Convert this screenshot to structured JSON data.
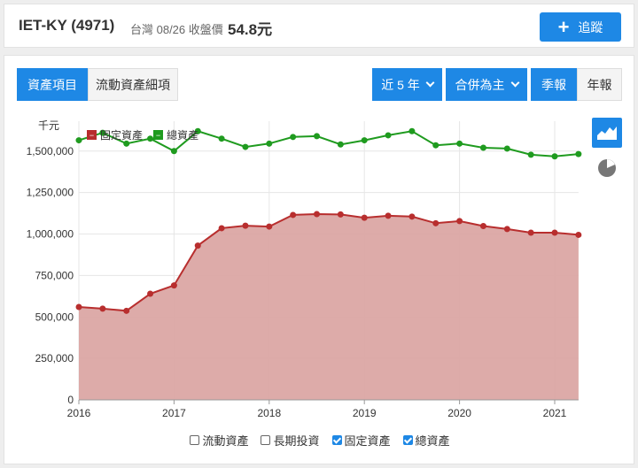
{
  "header": {
    "title": "IET-KY (4971)",
    "market": "台灣 08/26 收盤價",
    "price": "54.8元",
    "follow_label": "追蹤"
  },
  "tabs": [
    {
      "label": "資產項目",
      "active": true
    },
    {
      "label": "流動資產細項",
      "active": false
    }
  ],
  "controls": {
    "period": "近 5 年",
    "basis": "合併為主",
    "quarterly": "季報",
    "annual": "年報"
  },
  "side_icons": [
    "area-chart-icon",
    "pie-chart-icon"
  ],
  "bottom_legend": [
    {
      "label": "流動資產",
      "checked": false
    },
    {
      "label": "長期投資",
      "checked": false
    },
    {
      "label": "固定資產",
      "checked": true
    },
    {
      "label": "總資產",
      "checked": true
    }
  ],
  "colors": {
    "accent": "#1e88e5",
    "fixed_assets": "#b82e2e",
    "fixed_assets_fill": "#dba7a4",
    "total_assets": "#1f9b1f"
  },
  "chart_data": {
    "type": "line",
    "unit_label": "千元",
    "x_ticks": [
      "2016",
      "2017",
      "2018",
      "2019",
      "2020",
      "2021"
    ],
    "y_ticks": [
      "0",
      "250,000",
      "500,000",
      "750,000",
      "1,000,000",
      "1,250,000",
      "1,500,000"
    ],
    "ylim": [
      0,
      1600000
    ],
    "x": [
      "2016Q1",
      "2016Q2",
      "2016Q3",
      "2016Q4",
      "2017Q1",
      "2017Q2",
      "2017Q3",
      "2017Q4",
      "2018Q1",
      "2018Q2",
      "2018Q3",
      "2018Q4",
      "2019Q1",
      "2019Q2",
      "2019Q3",
      "2019Q4",
      "2020Q1",
      "2020Q2",
      "2020Q3",
      "2020Q4",
      "2021Q1",
      "2021Q2"
    ],
    "legend": [
      "固定資產",
      "總資產"
    ],
    "series": [
      {
        "name": "固定資產",
        "style": "area",
        "values": [
          560000,
          550000,
          537000,
          640000,
          690000,
          930000,
          1035000,
          1050000,
          1045000,
          1115000,
          1120000,
          1118000,
          1098000,
          1110000,
          1105000,
          1065000,
          1078000,
          1048000,
          1030000,
          1008000,
          1008000,
          995000
        ]
      },
      {
        "name": "總資產",
        "style": "line",
        "values": [
          1565000,
          1610000,
          1545000,
          1575000,
          1500000,
          1620000,
          1575000,
          1525000,
          1545000,
          1585000,
          1590000,
          1540000,
          1565000,
          1595000,
          1620000,
          1535000,
          1545000,
          1520000,
          1515000,
          1478000,
          1468000,
          1482000
        ]
      }
    ],
    "grid": true,
    "legend_position": "top-left"
  }
}
